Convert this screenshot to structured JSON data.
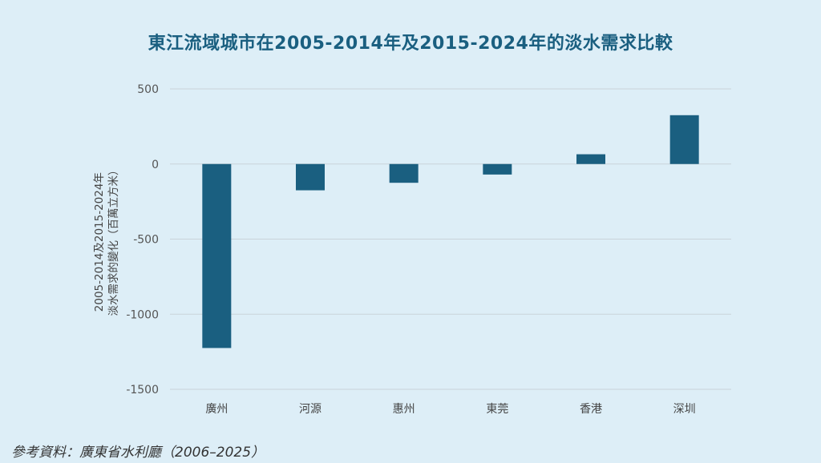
{
  "chart_data": {
    "type": "bar",
    "title": "東江流域城市在2005-2014年及2015-2024年的淡水需求比較",
    "ylabel_lines": [
      "2005-2014及2015-2024年",
      "淡水需求的變化（百萬立方米）"
    ],
    "xlabel": "",
    "categories": [
      "廣州",
      "河源",
      "惠州",
      "東莞",
      "香港",
      "深圳"
    ],
    "values": [
      -1225,
      -175,
      -125,
      -70,
      65,
      325
    ],
    "ylim": [
      -1500,
      500
    ],
    "yticks": [
      500,
      0,
      -500,
      -1000,
      -1500
    ],
    "grid": true,
    "bar_color": "#1a5f80"
  },
  "source": "參考資料：廣東省水利廳（2006–2025）"
}
